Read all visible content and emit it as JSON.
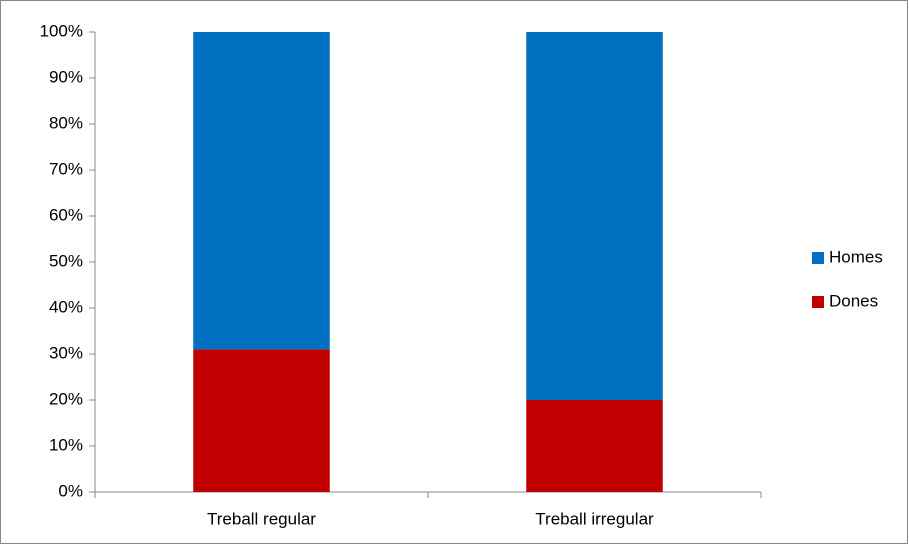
{
  "chart_data": {
    "type": "stacked_bar",
    "categories": [
      "Treball regular",
      "Treball irregular"
    ],
    "series": [
      {
        "name": "Homes",
        "color": "#0070c0",
        "values": [
          69,
          80
        ]
      },
      {
        "name": "Dones",
        "color": "#c00000",
        "values": [
          31,
          20
        ]
      }
    ],
    "ylim": [
      0,
      100
    ],
    "yticks": [
      {
        "value": 0,
        "label": "0%"
      },
      {
        "value": 10,
        "label": "10%"
      },
      {
        "value": 20,
        "label": "20%"
      },
      {
        "value": 30,
        "label": "30%"
      },
      {
        "value": 40,
        "label": "40%"
      },
      {
        "value": 50,
        "label": "50%"
      },
      {
        "value": 60,
        "label": "60%"
      },
      {
        "value": 70,
        "label": "70%"
      },
      {
        "value": 80,
        "label": "80%"
      },
      {
        "value": 90,
        "label": "90%"
      },
      {
        "value": 100,
        "label": "100%"
      }
    ],
    "grid": false,
    "legend": "right"
  }
}
